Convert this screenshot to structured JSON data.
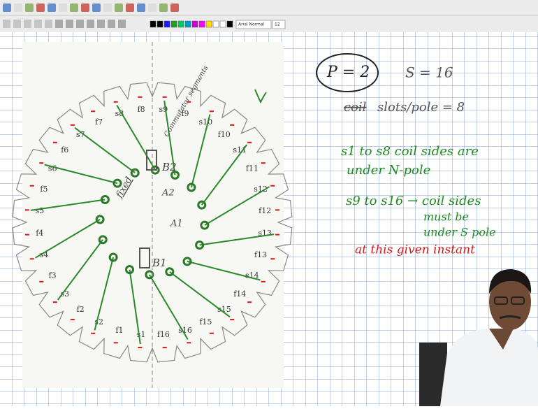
{
  "toolbar": {
    "font_name": "Arial Normal",
    "font_size": "12"
  },
  "diagram": {
    "slot_labels": [
      "s1",
      "s2",
      "s3",
      "s4",
      "s5",
      "s6",
      "s7",
      "s8",
      "s9",
      "s10",
      "s11",
      "s12",
      "s13",
      "s14",
      "s15",
      "s16"
    ],
    "field_labels": [
      "f1",
      "f2",
      "f3",
      "f4",
      "f5",
      "f6",
      "f7",
      "f8",
      "f9",
      "f10",
      "f11",
      "f12",
      "f13",
      "f14",
      "f15",
      "f16"
    ],
    "brush_top": "B2",
    "brush_bottom": "B1",
    "point_top": "A2",
    "point_bottom": "A1",
    "fixed_note": "fixed",
    "segments_note": "Commutator segments"
  },
  "notes": {
    "poles": "P = 2",
    "slots": "S = 16",
    "struck_word": "coil",
    "slots_per_pole": "slots/pole = 8",
    "line1": "s1 to s8 coil sides are",
    "line2": "under N-pole",
    "line3": "s9 to s16 → coil sides",
    "line4": "must be",
    "line5": "under S pole",
    "line6": "at this given instant"
  }
}
